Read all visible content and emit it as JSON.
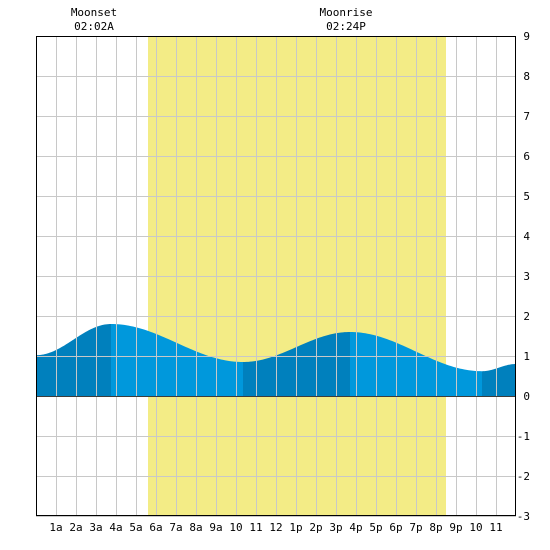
{
  "annotations": {
    "moonset": {
      "label": "Moonset",
      "time": "02:02A",
      "x": 2.033
    },
    "moonrise": {
      "label": "Moonrise",
      "time": "02:24P",
      "x": 14.4
    }
  },
  "colors": {
    "daylight": "#f3ec86",
    "grid": "#c8c8c8",
    "tide_rising": "#0080bd",
    "tide_falling": "#0098dc",
    "border": "#000000"
  },
  "chart_data": {
    "type": "area",
    "title": "",
    "xlabel": "",
    "ylabel": "",
    "xlim": [
      -0.5,
      23.5
    ],
    "ylim": [
      -3,
      9
    ],
    "x_ticks": [
      {
        "x": 0.5,
        "label": "1a"
      },
      {
        "x": 1.5,
        "label": "2a"
      },
      {
        "x": 2.5,
        "label": "3a"
      },
      {
        "x": 3.5,
        "label": "4a"
      },
      {
        "x": 4.5,
        "label": "5a"
      },
      {
        "x": 5.5,
        "label": "6a"
      },
      {
        "x": 6.5,
        "label": "7a"
      },
      {
        "x": 7.5,
        "label": "8a"
      },
      {
        "x": 8.5,
        "label": "9a"
      },
      {
        "x": 9.5,
        "label": "10"
      },
      {
        "x": 10.5,
        "label": "11"
      },
      {
        "x": 11.5,
        "label": "12"
      },
      {
        "x": 12.5,
        "label": "1p"
      },
      {
        "x": 13.5,
        "label": "2p"
      },
      {
        "x": 14.5,
        "label": "3p"
      },
      {
        "x": 15.5,
        "label": "4p"
      },
      {
        "x": 16.5,
        "label": "5p"
      },
      {
        "x": 17.5,
        "label": "6p"
      },
      {
        "x": 18.5,
        "label": "7p"
      },
      {
        "x": 19.5,
        "label": "8p"
      },
      {
        "x": 20.5,
        "label": "9p"
      },
      {
        "x": 21.5,
        "label": "10"
      },
      {
        "x": 22.5,
        "label": "11"
      }
    ],
    "y_ticks": [
      -3,
      -2,
      -1,
      0,
      1,
      2,
      3,
      4,
      5,
      6,
      7,
      8,
      9
    ],
    "daylight": {
      "start": 5.1,
      "end": 20.0
    },
    "extremes": [
      {
        "x": -0.5,
        "y": 1.02,
        "kind": "start"
      },
      {
        "x": 3.25,
        "y": 1.8,
        "kind": "high"
      },
      {
        "x": 9.85,
        "y": 0.85,
        "kind": "low"
      },
      {
        "x": 15.2,
        "y": 1.6,
        "kind": "high"
      },
      {
        "x": 21.8,
        "y": 0.62,
        "kind": "low"
      },
      {
        "x": 23.5,
        "y": 0.8,
        "kind": "end"
      }
    ],
    "grid": true,
    "legend": "none"
  }
}
